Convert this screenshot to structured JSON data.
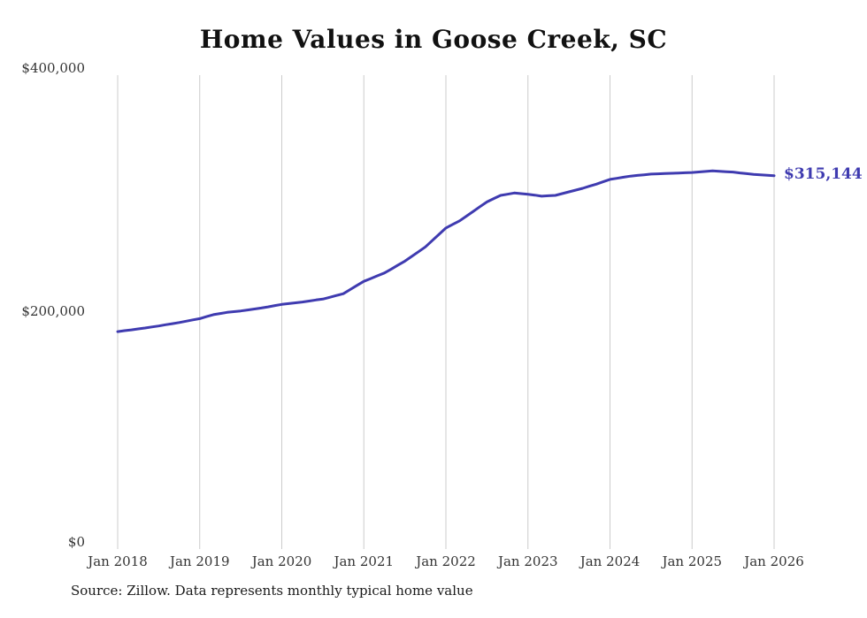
{
  "title": "Home Values in Goose Creek, SC",
  "end_label": "$315,144",
  "source": "Source: Zillow. Data represents monthly typical home value",
  "colors": {
    "line": "#3f3bb0",
    "grid": "#cccccc",
    "text": "#333333"
  },
  "chart_data": {
    "type": "line",
    "title": "Home Values in Goose Creek, SC",
    "xlabel": "",
    "ylabel": "",
    "ylim": [
      0,
      400000
    ],
    "grid": "vertical-only",
    "legend": "none",
    "x_range": [
      "Jan 2018",
      "Jan 2026"
    ],
    "frequency": "monthly",
    "x_tick_labels": [
      "Jan 2018",
      "Jan 2019",
      "Jan 2020",
      "Jan 2021",
      "Jan 2022",
      "Jan 2023",
      "Jan 2024",
      "Jan 2025",
      "Jan 2026"
    ],
    "y_tick_labels": [
      "$400,000",
      "$200,000",
      "$0"
    ],
    "end_value": 315144,
    "end_value_label": "$315,144",
    "series": [
      {
        "name": "Typical home value",
        "values": [
          183500,
          184300,
          185000,
          185800,
          186600,
          187500,
          188300,
          189300,
          190200,
          191200,
          192300,
          193400,
          194500,
          196200,
          197800,
          198800,
          199800,
          200400,
          201000,
          201800,
          202600,
          203400,
          204400,
          205500,
          206500,
          207200,
          207800,
          208500,
          209300,
          210200,
          211000,
          212500,
          214000,
          215500,
          219000,
          222500,
          226000,
          228300,
          230700,
          233000,
          236300,
          239700,
          243000,
          247000,
          251000,
          255000,
          260300,
          265700,
          271000,
          274000,
          277000,
          281000,
          285000,
          289000,
          293000,
          295800,
          298500,
          299500,
          300500,
          300000,
          299500,
          298700,
          297800,
          298200,
          298500,
          300000,
          301500,
          303000,
          304500,
          306300,
          308000,
          310000,
          312000,
          312900,
          313900,
          314800,
          315400,
          315900,
          316500,
          316700,
          317000,
          317200,
          317400,
          317600,
          317800,
          318300,
          318700,
          319200,
          318900,
          318500,
          318200,
          317500,
          316900,
          316200,
          315800,
          315500,
          315144
        ]
      }
    ]
  }
}
